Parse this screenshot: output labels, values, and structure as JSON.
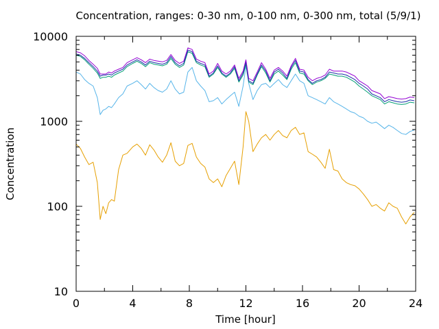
{
  "chart_data": {
    "type": "line",
    "title": "Concentration, ranges: 0-30 nm, 0-100 nm, 0-300 nm, total (5/9/1)",
    "xlabel": "Time [hour]",
    "ylabel": "Concentration",
    "xlim": [
      0,
      24
    ],
    "ylim": [
      10,
      10000
    ],
    "yscale": "log",
    "xticks": [
      0,
      4,
      8,
      12,
      16,
      20,
      24
    ],
    "xtick_labels": [
      "0",
      "4",
      "8",
      "12",
      "16",
      "20",
      "24"
    ],
    "yticks": [
      10,
      100,
      1000,
      10000
    ],
    "ytick_labels": [
      "10",
      "100",
      "1000",
      "10000"
    ],
    "grid": false,
    "legend": "none",
    "series": [
      {
        "color": "#e69f00",
        "x": [
          0,
          0.3,
          0.6,
          0.9,
          1.2,
          1.5,
          1.7,
          1.9,
          2.1,
          2.3,
          2.5,
          2.7,
          3.0,
          3.3,
          3.6,
          4.0,
          4.3,
          4.6,
          4.9,
          5.2,
          5.5,
          5.8,
          6.1,
          6.4,
          6.7,
          7.0,
          7.3,
          7.6,
          7.9,
          8.2,
          8.5,
          8.8,
          9.1,
          9.4,
          9.7,
          10.0,
          10.3,
          10.6,
          10.9,
          11.2,
          11.5,
          11.8,
          12.0,
          12.2,
          12.5,
          12.8,
          13.1,
          13.4,
          13.7,
          14.0,
          14.3,
          14.6,
          14.9,
          15.2,
          15.5,
          15.8,
          16.1,
          16.4,
          16.7,
          17.0,
          17.3,
          17.6,
          17.9,
          18.2,
          18.5,
          18.8,
          19.1,
          19.4,
          19.7,
          20.0,
          20.3,
          20.6,
          20.9,
          21.2,
          21.5,
          21.8,
          22.1,
          22.4,
          22.7,
          23.0,
          23.3,
          23.6,
          23.9
        ],
        "values": [
          540,
          480,
          380,
          310,
          330,
          190,
          70,
          100,
          82,
          110,
          120,
          115,
          270,
          400,
          420,
          500,
          540,
          480,
          400,
          530,
          460,
          380,
          330,
          400,
          560,
          340,
          300,
          320,
          520,
          550,
          380,
          320,
          290,
          210,
          190,
          210,
          170,
          230,
          280,
          340,
          180,
          500,
          1300,
          1000,
          440,
          540,
          640,
          700,
          600,
          700,
          780,
          680,
          640,
          780,
          850,
          700,
          730,
          440,
          410,
          380,
          330,
          280,
          470,
          270,
          260,
          210,
          190,
          180,
          175,
          160,
          140,
          120,
          100,
          105,
          95,
          88,
          110,
          100,
          95,
          75,
          62,
          75,
          85
        ]
      },
      {
        "color": "#56b4e9",
        "x": [
          0,
          0.3,
          0.6,
          0.9,
          1.2,
          1.5,
          1.7,
          1.9,
          2.1,
          2.3,
          2.5,
          2.7,
          3.0,
          3.3,
          3.6,
          4.0,
          4.3,
          4.6,
          4.9,
          5.2,
          5.5,
          5.8,
          6.1,
          6.4,
          6.7,
          7.0,
          7.3,
          7.6,
          7.9,
          8.2,
          8.5,
          8.8,
          9.1,
          9.4,
          9.7,
          10.0,
          10.3,
          10.6,
          10.9,
          11.2,
          11.5,
          11.8,
          12.0,
          12.2,
          12.5,
          12.8,
          13.1,
          13.4,
          13.7,
          14.0,
          14.3,
          14.6,
          14.9,
          15.2,
          15.5,
          15.8,
          16.1,
          16.4,
          16.7,
          17.0,
          17.3,
          17.6,
          17.9,
          18.2,
          18.5,
          18.8,
          19.1,
          19.4,
          19.7,
          20.0,
          20.3,
          20.6,
          20.9,
          21.2,
          21.5,
          21.8,
          22.1,
          22.4,
          22.7,
          23.0,
          23.3,
          23.6,
          23.9
        ],
        "values": [
          3800,
          3600,
          3100,
          2800,
          2600,
          1900,
          1200,
          1350,
          1400,
          1500,
          1450,
          1600,
          1900,
          2100,
          2600,
          2800,
          3000,
          2700,
          2400,
          2800,
          2500,
          2300,
          2200,
          2400,
          3000,
          2400,
          2100,
          2200,
          3800,
          4300,
          3000,
          2600,
          2300,
          1700,
          1750,
          1900,
          1600,
          1800,
          2000,
          2200,
          1500,
          2600,
          4500,
          2800,
          1800,
          2300,
          2700,
          2800,
          2500,
          2800,
          3100,
          2700,
          2500,
          3000,
          3600,
          3000,
          2800,
          2000,
          1900,
          1800,
          1700,
          1600,
          1900,
          1700,
          1600,
          1500,
          1400,
          1300,
          1250,
          1150,
          1100,
          1000,
          950,
          980,
          900,
          820,
          900,
          850,
          780,
          720,
          700,
          760,
          790
        ]
      },
      {
        "color": "#009e73",
        "x": [
          0,
          0.3,
          0.6,
          0.9,
          1.2,
          1.5,
          1.7,
          1.9,
          2.1,
          2.3,
          2.5,
          2.7,
          3.0,
          3.3,
          3.6,
          4.0,
          4.3,
          4.6,
          4.9,
          5.2,
          5.5,
          5.8,
          6.1,
          6.4,
          6.7,
          7.0,
          7.3,
          7.6,
          7.9,
          8.2,
          8.5,
          8.8,
          9.1,
          9.4,
          9.7,
          10.0,
          10.3,
          10.6,
          10.9,
          11.2,
          11.5,
          11.8,
          12.0,
          12.2,
          12.5,
          12.8,
          13.1,
          13.4,
          13.7,
          14.0,
          14.3,
          14.6,
          14.9,
          15.2,
          15.5,
          15.8,
          16.1,
          16.4,
          16.7,
          17.0,
          17.3,
          17.6,
          17.9,
          18.2,
          18.5,
          18.8,
          19.1,
          19.4,
          19.7,
          20.0,
          20.3,
          20.6,
          20.9,
          21.2,
          21.5,
          21.8,
          22.1,
          22.4,
          22.7,
          23.0,
          23.3,
          23.6,
          23.9
        ],
        "values": [
          6000,
          5800,
          5300,
          4700,
          4200,
          3700,
          3200,
          3300,
          3300,
          3400,
          3300,
          3500,
          3700,
          3900,
          4400,
          4800,
          5100,
          4800,
          4400,
          4900,
          4700,
          4600,
          4500,
          4700,
          5500,
          4700,
          4300,
          4600,
          6600,
          6300,
          4900,
          4600,
          4400,
          3300,
          3600,
          4300,
          3600,
          3300,
          3600,
          4200,
          2900,
          3500,
          4700,
          2900,
          2700,
          3500,
          4400,
          3700,
          2900,
          3600,
          3900,
          3500,
          3100,
          4100,
          4900,
          3700,
          3600,
          3000,
          2700,
          2900,
          3000,
          3200,
          3600,
          3500,
          3400,
          3400,
          3300,
          3100,
          2900,
          2600,
          2400,
          2200,
          2000,
          1900,
          1800,
          1600,
          1700,
          1650,
          1600,
          1580,
          1600,
          1680,
          1650
        ]
      },
      {
        "color": "#1a2fa8",
        "x": [
          0,
          0.3,
          0.6,
          0.9,
          1.2,
          1.5,
          1.7,
          1.9,
          2.1,
          2.3,
          2.5,
          2.7,
          3.0,
          3.3,
          3.6,
          4.0,
          4.3,
          4.6,
          4.9,
          5.2,
          5.5,
          5.8,
          6.1,
          6.4,
          6.7,
          7.0,
          7.3,
          7.6,
          7.9,
          8.2,
          8.5,
          8.8,
          9.1,
          9.4,
          9.7,
          10.0,
          10.3,
          10.6,
          10.9,
          11.2,
          11.5,
          11.8,
          12.0,
          12.2,
          12.5,
          12.8,
          13.1,
          13.4,
          13.7,
          14.0,
          14.3,
          14.6,
          14.9,
          15.2,
          15.5,
          15.8,
          16.1,
          16.4,
          16.7,
          17.0,
          17.3,
          17.6,
          17.9,
          18.2,
          18.5,
          18.8,
          19.1,
          19.4,
          19.7,
          20.0,
          20.3,
          20.6,
          20.9,
          21.2,
          21.5,
          21.8,
          22.1,
          22.4,
          22.7,
          23.0,
          23.3,
          23.6,
          23.9
        ],
        "values": [
          6200,
          6000,
          5500,
          4900,
          4400,
          3900,
          3400,
          3500,
          3500,
          3600,
          3500,
          3700,
          3900,
          4100,
          4600,
          5000,
          5300,
          5000,
          4600,
          5100,
          4900,
          4800,
          4700,
          4900,
          5800,
          4900,
          4500,
          4800,
          6900,
          6600,
          5100,
          4800,
          4600,
          3400,
          3700,
          4500,
          3700,
          3400,
          3700,
          4400,
          3000,
          3700,
          5000,
          3000,
          2800,
          3600,
          4600,
          3900,
          3000,
          3800,
          4100,
          3700,
          3200,
          4300,
          5200,
          3900,
          3800,
          3100,
          2800,
          3000,
          3100,
          3300,
          3800,
          3700,
          3600,
          3600,
          3500,
          3300,
          3100,
          2800,
          2600,
          2400,
          2100,
          2000,
          1900,
          1700,
          1800,
          1750,
          1700,
          1680,
          1700,
          1780,
          1750
        ]
      },
      {
        "color": "#9400d3",
        "x": [
          0,
          0.3,
          0.6,
          0.9,
          1.2,
          1.5,
          1.7,
          1.9,
          2.1,
          2.3,
          2.5,
          2.7,
          3.0,
          3.3,
          3.6,
          4.0,
          4.3,
          4.6,
          4.9,
          5.2,
          5.5,
          5.8,
          6.1,
          6.4,
          6.7,
          7.0,
          7.3,
          7.6,
          7.9,
          8.2,
          8.5,
          8.8,
          9.1,
          9.4,
          9.7,
          10.0,
          10.3,
          10.6,
          10.9,
          11.2,
          11.5,
          11.8,
          12.0,
          12.2,
          12.5,
          12.8,
          13.1,
          13.4,
          13.7,
          14.0,
          14.3,
          14.6,
          14.9,
          15.2,
          15.5,
          15.8,
          16.1,
          16.4,
          16.7,
          17.0,
          17.3,
          17.6,
          17.9,
          18.2,
          18.5,
          18.8,
          19.1,
          19.4,
          19.7,
          20.0,
          20.3,
          20.6,
          20.9,
          21.2,
          21.5,
          21.8,
          22.1,
          22.4,
          22.7,
          23.0,
          23.3,
          23.6,
          23.9
        ],
        "values": [
          6600,
          6400,
          5900,
          5200,
          4700,
          4200,
          3600,
          3600,
          3600,
          3800,
          3700,
          3900,
          4100,
          4300,
          4900,
          5300,
          5600,
          5300,
          4900,
          5400,
          5200,
          5100,
          5000,
          5200,
          6100,
          5200,
          4800,
          5100,
          7300,
          7000,
          5400,
          5100,
          4900,
          3600,
          3900,
          4800,
          3900,
          3600,
          3900,
          4600,
          3200,
          3900,
          5300,
          3200,
          3000,
          3800,
          4900,
          4100,
          3200,
          4000,
          4300,
          3900,
          3400,
          4500,
          5500,
          4100,
          4000,
          3300,
          3000,
          3200,
          3300,
          3500,
          4100,
          3900,
          3900,
          3900,
          3800,
          3600,
          3400,
          3000,
          2800,
          2600,
          2300,
          2200,
          2100,
          1850,
          1950,
          1900,
          1850,
          1830,
          1850,
          1930,
          1900
        ]
      }
    ]
  }
}
